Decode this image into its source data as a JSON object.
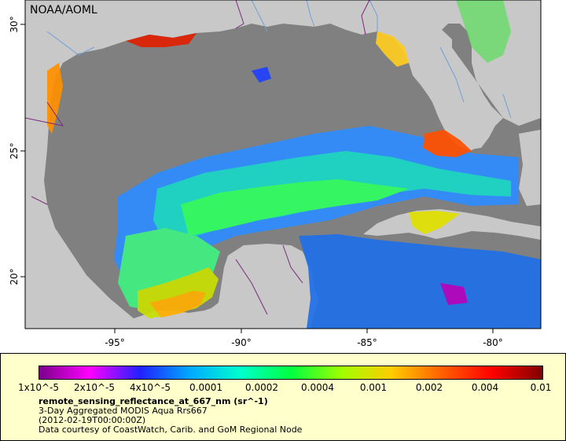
{
  "map": {
    "credit": "NOAA/AOML",
    "lon_ticks": [
      "-95°",
      "-90°",
      "-85°",
      "-80°"
    ],
    "lat_ticks": [
      "30°",
      "25°",
      "20°"
    ],
    "colors": {
      "ocean_nodata": "#808080",
      "land": "#c8c8c8",
      "rivers": "#6fa0d8",
      "borders": "#7a2a7a"
    }
  },
  "colorbar": {
    "labels": [
      "1x10^-5",
      "2x10^-5",
      "4x10^-5",
      "0.0001",
      "0.0002",
      "0.0004",
      "0.001",
      "0.002",
      "0.004",
      "0.01"
    ],
    "colors": [
      "#7a008a",
      "#ff00ff",
      "#2020ff",
      "#00aaff",
      "#00ffcc",
      "#00ff40",
      "#a0ff00",
      "#ffcc00",
      "#ff6000",
      "#ff0000",
      "#800000"
    ]
  },
  "legend": {
    "title": "remote_sensing_reflectance_at_667_nm (sr^-1)",
    "line1": "3-Day Aggregated MODIS Aqua Rrs667",
    "line2": "(2012-02-19T00:00:00Z)",
    "line3": "Data courtesy of CoastWatch, Carib. and GoM Regional Node"
  }
}
